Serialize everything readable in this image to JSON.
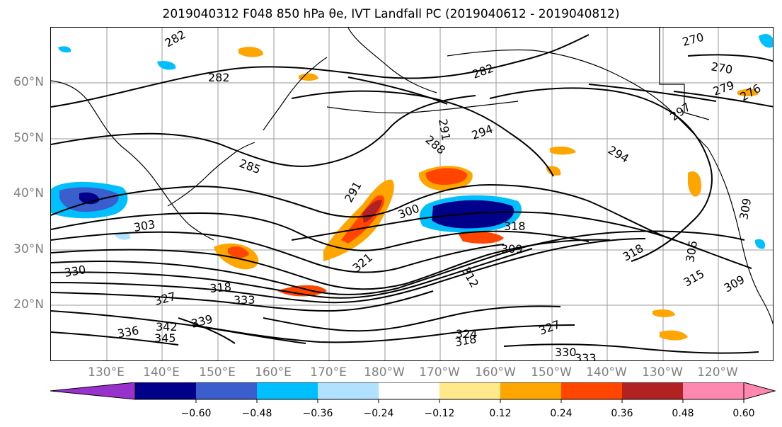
{
  "title": "2019040312 F048 850 hPa θe, IVT Landfall PC (2019040612 - 2019040812)",
  "lat_labels": [
    "60°N",
    "50°N",
    "40°N",
    "30°N",
    "20°N"
  ],
  "lon_labels": [
    "130°E",
    "140°E",
    "150°E",
    "160°E",
    "170°E",
    "180°W",
    "170°W",
    "160°W",
    "150°W",
    "140°W",
    "130°W",
    "120°W"
  ],
  "contour_labels": [
    "282",
    "282",
    "282",
    "285",
    "288",
    "291",
    "291",
    "294",
    "294",
    "297",
    "300",
    "303",
    "306",
    "309",
    "309",
    "309",
    "312",
    "315",
    "318",
    "318",
    "318",
    "318",
    "321",
    "324",
    "327",
    "327",
    "330",
    "330",
    "333",
    "333",
    "336",
    "339",
    "342",
    "345",
    "270",
    "270",
    "276",
    "279"
  ],
  "colorbar": {
    "ticks": [
      "−0.60",
      "−0.48",
      "−0.36",
      "−0.24",
      "−0.12",
      "0.12",
      "0.24",
      "0.36",
      "0.48",
      "0.60"
    ],
    "colors": [
      "#9932cc",
      "#00008b",
      "#3a5fcd",
      "#00bfff",
      "#b0e2ff",
      "#ffffff",
      "#ffe98a",
      "#ffa500",
      "#ff4500",
      "#b22222",
      "#ff88b0",
      "#ff88b0"
    ]
  }
}
